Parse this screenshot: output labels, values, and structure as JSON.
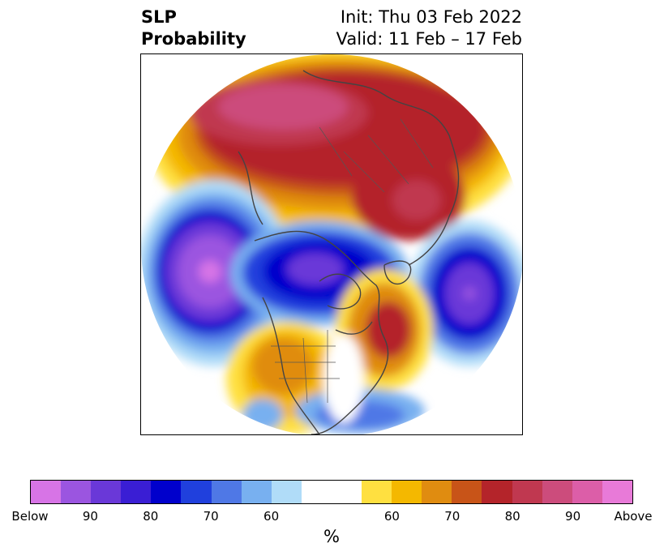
{
  "title": {
    "left_line1": "SLP",
    "left_line2": "Probability",
    "right_line1": "Init: Thu 03 Feb 2022",
    "right_line2": "Valid: 11 Feb – 17 Feb"
  },
  "colorbar": {
    "colors": [
      "#d774e6",
      "#9b55e0",
      "#6a38d8",
      "#3a1ed4",
      "#0000cc",
      "#2040dd",
      "#4f78e6",
      "#78b0f0",
      "#b0dcf8",
      "#ffffff",
      "#ffffff",
      "#ffe040",
      "#f4b800",
      "#e08c10",
      "#c85418",
      "#b4242a",
      "#c03850",
      "#cc4c7c",
      "#dc5ea8",
      "#e87ad8"
    ],
    "tick_labels": [
      "Below",
      "90",
      "80",
      "70",
      "60",
      "60",
      "70",
      "80",
      "90",
      "Above"
    ],
    "unit": "%"
  },
  "icons": {
    "map": "polar-stereographic-map"
  }
}
